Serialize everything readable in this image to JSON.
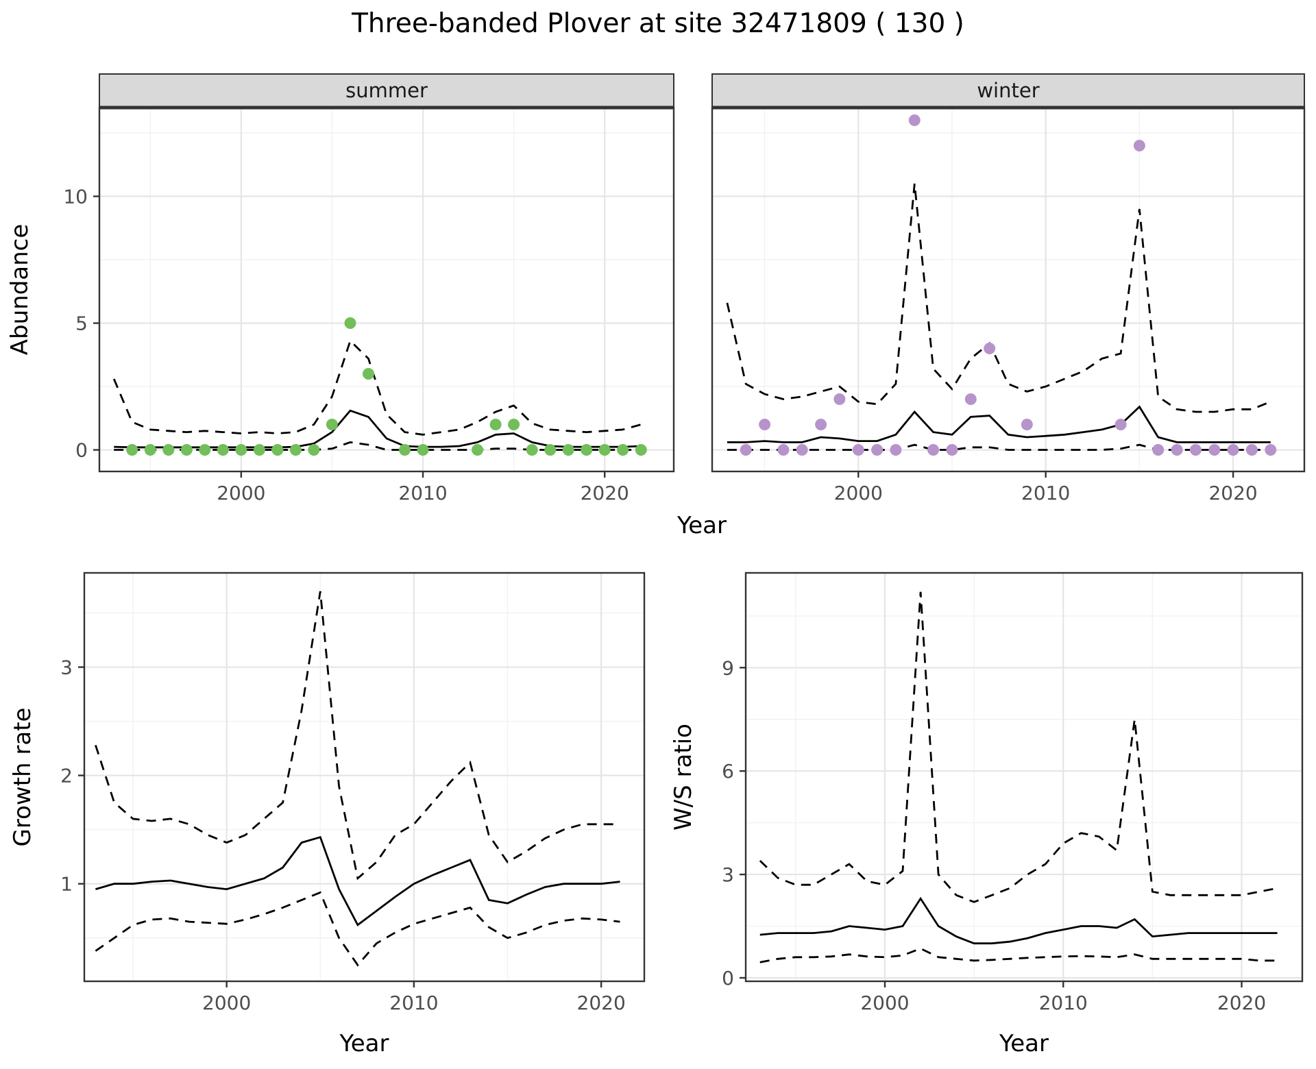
{
  "title": "Three-banded Plover at site 32471809 ( 130 )",
  "colors": {
    "summer_point": "#72be5a",
    "winter_point": "#b793cb",
    "line": "#000000",
    "strip_bg": "#d9d9d9",
    "strip_text": "#1a1a1a",
    "panel_border": "#333333",
    "grid_major": "#e5e5e5",
    "grid_minor": "#f2f2f2",
    "tick_text": "#4d4d4d",
    "axis_title": "#000000",
    "background": "#ffffff"
  },
  "chart_data": [
    {
      "id": "abundance-summer",
      "type": "line",
      "facet_label": "summer",
      "ylabel": "Abundance",
      "xlabel": "Year",
      "xlim": [
        1992.2,
        2023.8
      ],
      "ylim": [
        -0.85,
        13.5
      ],
      "xticks": [
        2000,
        2010,
        2020
      ],
      "yticks": [
        0,
        5,
        10
      ],
      "grid": true,
      "x_years": [
        1993,
        1994,
        1995,
        1996,
        1997,
        1998,
        1999,
        2000,
        2001,
        2002,
        2003,
        2004,
        2005,
        2006,
        2007,
        2008,
        2009,
        2010,
        2011,
        2012,
        2013,
        2014,
        2015,
        2016,
        2017,
        2018,
        2019,
        2020,
        2021,
        2022
      ],
      "series": [
        {
          "name": "mean",
          "style": "solid",
          "y": [
            0.12,
            0.1,
            0.1,
            0.1,
            0.1,
            0.1,
            0.1,
            0.1,
            0.1,
            0.1,
            0.12,
            0.25,
            0.7,
            1.55,
            1.3,
            0.45,
            0.15,
            0.12,
            0.12,
            0.15,
            0.3,
            0.6,
            0.65,
            0.3,
            0.15,
            0.12,
            0.12,
            0.12,
            0.12,
            0.15
          ]
        },
        {
          "name": "upper",
          "style": "dashed",
          "y": [
            2.8,
            1.1,
            0.8,
            0.75,
            0.7,
            0.75,
            0.7,
            0.65,
            0.7,
            0.65,
            0.7,
            1.0,
            2.1,
            4.3,
            3.6,
            1.4,
            0.7,
            0.6,
            0.7,
            0.8,
            1.1,
            1.5,
            1.75,
            1.05,
            0.8,
            0.75,
            0.7,
            0.75,
            0.8,
            1.0
          ]
        },
        {
          "name": "lower",
          "style": "dashed",
          "y": [
            0,
            0,
            0,
            0,
            0,
            0,
            0,
            0,
            0,
            0,
            0,
            0,
            0.05,
            0.3,
            0.2,
            0,
            0,
            0,
            0,
            0,
            0,
            0.05,
            0.05,
            0,
            0,
            0,
            0,
            0,
            0,
            0
          ]
        }
      ],
      "points": {
        "name": "observed-counts",
        "color_key": "summer_point",
        "x": [
          1994,
          1995,
          1996,
          1997,
          1998,
          1999,
          2000,
          2001,
          2002,
          2003,
          2004,
          2005,
          2006,
          2007,
          2009,
          2010,
          2013,
          2014,
          2015,
          2016,
          2017,
          2018,
          2019,
          2020,
          2021,
          2022
        ],
        "y": [
          0,
          0,
          0,
          0,
          0,
          0,
          0,
          0,
          0,
          0,
          0,
          1,
          5,
          3,
          0,
          0,
          0,
          1,
          1,
          0,
          0,
          0,
          0,
          0,
          0,
          0
        ]
      }
    },
    {
      "id": "abundance-winter",
      "type": "line",
      "facet_label": "winter",
      "ylabel": "Abundance",
      "xlabel": "Year",
      "xlim": [
        1992.2,
        2023.8
      ],
      "ylim": [
        -0.85,
        13.5
      ],
      "xticks": [
        2000,
        2010,
        2020
      ],
      "yticks": [
        0,
        5,
        10
      ],
      "grid": true,
      "x_years": [
        1993,
        1994,
        1995,
        1996,
        1997,
        1998,
        1999,
        2000,
        2001,
        2002,
        2003,
        2004,
        2005,
        2006,
        2007,
        2008,
        2009,
        2010,
        2011,
        2012,
        2013,
        2014,
        2015,
        2016,
        2017,
        2018,
        2019,
        2020,
        2021,
        2022
      ],
      "series": [
        {
          "name": "mean",
          "style": "solid",
          "y": [
            0.3,
            0.3,
            0.35,
            0.3,
            0.3,
            0.5,
            0.45,
            0.35,
            0.35,
            0.6,
            1.5,
            0.7,
            0.6,
            1.3,
            1.35,
            0.6,
            0.5,
            0.55,
            0.6,
            0.7,
            0.8,
            1.0,
            1.7,
            0.5,
            0.3,
            0.3,
            0.3,
            0.3,
            0.3,
            0.3
          ]
        },
        {
          "name": "upper",
          "style": "dashed",
          "y": [
            5.8,
            2.6,
            2.2,
            2.0,
            2.1,
            2.3,
            2.5,
            1.9,
            1.8,
            2.6,
            10.5,
            3.2,
            2.4,
            3.6,
            4.2,
            2.6,
            2.3,
            2.5,
            2.8,
            3.1,
            3.6,
            3.8,
            9.5,
            2.1,
            1.6,
            1.5,
            1.5,
            1.6,
            1.6,
            1.9
          ]
        },
        {
          "name": "lower",
          "style": "dashed",
          "y": [
            0,
            0,
            0,
            0,
            0,
            0,
            0,
            0,
            0,
            0,
            0.2,
            0,
            0,
            0.1,
            0.1,
            0,
            0,
            0,
            0,
            0,
            0,
            0.05,
            0.2,
            0,
            0,
            0,
            0,
            0,
            0,
            0
          ]
        }
      ],
      "points": {
        "name": "observed-counts",
        "color_key": "winter_point",
        "x": [
          1994,
          1995,
          1996,
          1997,
          1998,
          1999,
          2000,
          2001,
          2002,
          2003,
          2004,
          2005,
          2006,
          2007,
          2009,
          2014,
          2015,
          2016,
          2017,
          2018,
          2019,
          2020,
          2021,
          2022
        ],
        "y": [
          0,
          1,
          0,
          0,
          1,
          2,
          0,
          0,
          0,
          13,
          0,
          0,
          2,
          4,
          1,
          1,
          12,
          0,
          0,
          0,
          0,
          0,
          0,
          0
        ]
      }
    },
    {
      "id": "growth-rate",
      "type": "line",
      "ylabel": "Growth rate",
      "xlabel": "Year",
      "xlim": [
        1992.4,
        2022.3
      ],
      "ylim": [
        0.1,
        3.87
      ],
      "xticks": [
        2000,
        2010,
        2020
      ],
      "yticks": [
        1,
        2,
        3
      ],
      "grid": true,
      "x_years": [
        1993,
        1994,
        1995,
        1996,
        1997,
        1998,
        1999,
        2000,
        2001,
        2002,
        2003,
        2004,
        2005,
        2006,
        2007,
        2008,
        2009,
        2010,
        2011,
        2012,
        2013,
        2014,
        2015,
        2016,
        2017,
        2018,
        2019,
        2020,
        2021
      ],
      "series": [
        {
          "name": "mean",
          "style": "solid",
          "y": [
            0.95,
            1.0,
            1.0,
            1.02,
            1.03,
            1.0,
            0.97,
            0.95,
            1.0,
            1.05,
            1.15,
            1.38,
            1.43,
            0.95,
            0.62,
            0.75,
            0.88,
            1.0,
            1.08,
            1.15,
            1.22,
            0.85,
            0.82,
            0.9,
            0.97,
            1.0,
            1.0,
            1.0,
            1.02
          ]
        },
        {
          "name": "upper",
          "style": "dashed",
          "y": [
            2.28,
            1.75,
            1.6,
            1.58,
            1.6,
            1.55,
            1.45,
            1.38,
            1.45,
            1.6,
            1.75,
            2.6,
            3.7,
            1.9,
            1.05,
            1.2,
            1.45,
            1.55,
            1.75,
            1.95,
            2.12,
            1.45,
            1.2,
            1.3,
            1.42,
            1.5,
            1.55,
            1.55,
            1.55
          ]
        },
        {
          "name": "lower",
          "style": "dashed",
          "y": [
            0.38,
            0.5,
            0.62,
            0.67,
            0.68,
            0.65,
            0.64,
            0.63,
            0.67,
            0.72,
            0.78,
            0.85,
            0.92,
            0.5,
            0.25,
            0.45,
            0.55,
            0.63,
            0.68,
            0.73,
            0.78,
            0.6,
            0.5,
            0.55,
            0.62,
            0.66,
            0.68,
            0.67,
            0.65
          ]
        }
      ]
    },
    {
      "id": "ws-ratio",
      "type": "line",
      "ylabel": "W/S ratio",
      "xlabel": "Year",
      "xlim": [
        1992.2,
        2023.4
      ],
      "ylim": [
        -0.1,
        11.75
      ],
      "xticks": [
        2000,
        2010,
        2020
      ],
      "yticks": [
        0,
        3,
        6,
        9
      ],
      "grid": true,
      "x_years": [
        1993,
        1994,
        1995,
        1996,
        1997,
        1998,
        1999,
        2000,
        2001,
        2002,
        2003,
        2004,
        2005,
        2006,
        2007,
        2008,
        2009,
        2010,
        2011,
        2012,
        2013,
        2014,
        2015,
        2016,
        2017,
        2018,
        2019,
        2020,
        2021,
        2022
      ],
      "series": [
        {
          "name": "mean",
          "style": "solid",
          "y": [
            1.25,
            1.3,
            1.3,
            1.3,
            1.35,
            1.5,
            1.45,
            1.4,
            1.5,
            2.3,
            1.5,
            1.2,
            1.0,
            1.0,
            1.05,
            1.15,
            1.3,
            1.4,
            1.5,
            1.5,
            1.45,
            1.7,
            1.2,
            1.25,
            1.3,
            1.3,
            1.3,
            1.3,
            1.3,
            1.3
          ]
        },
        {
          "name": "upper",
          "style": "dashed",
          "y": [
            3.4,
            2.9,
            2.7,
            2.7,
            3.0,
            3.3,
            2.8,
            2.7,
            3.1,
            11.2,
            3.0,
            2.4,
            2.2,
            2.4,
            2.6,
            3.0,
            3.3,
            3.9,
            4.2,
            4.1,
            3.7,
            7.5,
            2.5,
            2.4,
            2.4,
            2.4,
            2.4,
            2.4,
            2.5,
            2.6
          ]
        },
        {
          "name": "lower",
          "style": "dashed",
          "y": [
            0.45,
            0.55,
            0.6,
            0.6,
            0.62,
            0.68,
            0.62,
            0.6,
            0.65,
            0.85,
            0.6,
            0.55,
            0.5,
            0.52,
            0.55,
            0.58,
            0.6,
            0.62,
            0.63,
            0.62,
            0.6,
            0.68,
            0.55,
            0.55,
            0.55,
            0.55,
            0.55,
            0.55,
            0.5,
            0.5
          ]
        }
      ]
    }
  ]
}
